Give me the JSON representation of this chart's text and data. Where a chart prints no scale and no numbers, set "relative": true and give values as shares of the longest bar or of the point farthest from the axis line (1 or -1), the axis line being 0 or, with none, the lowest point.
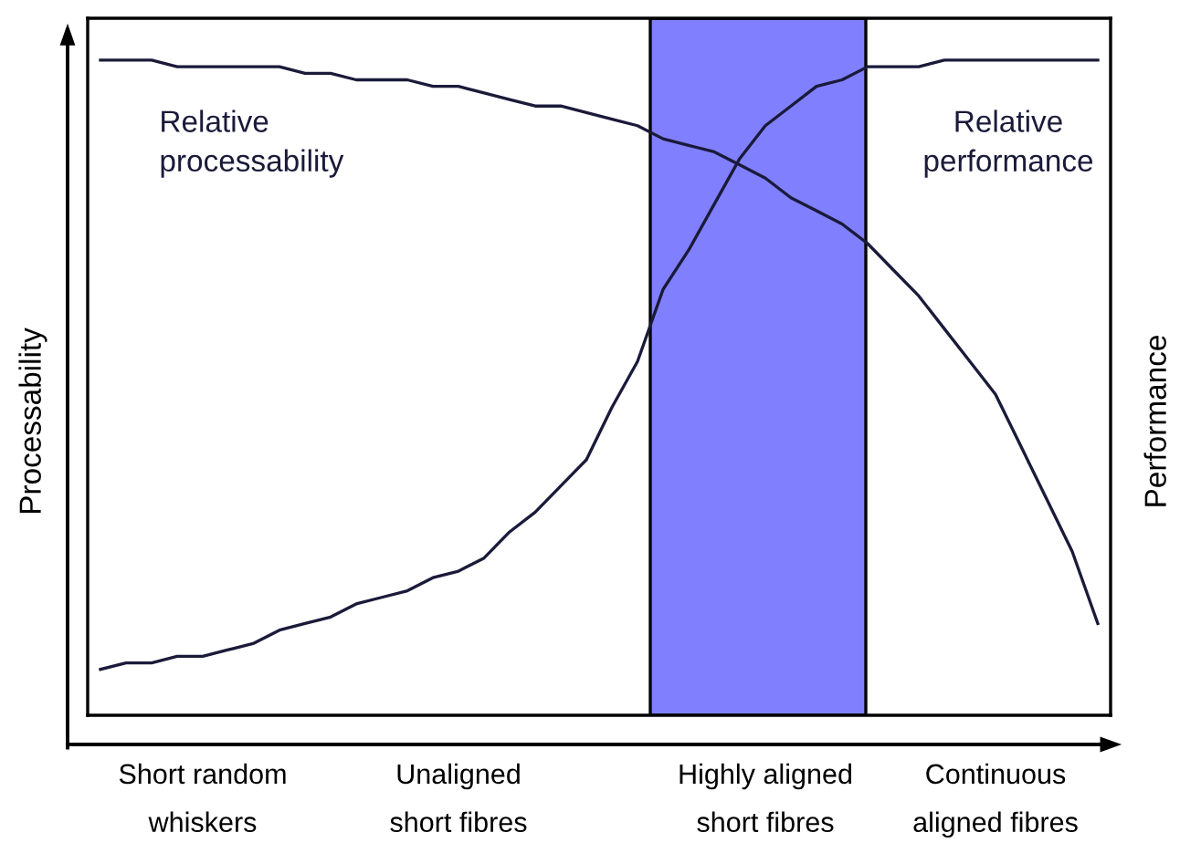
{
  "chart_data": {
    "type": "line",
    "relative": true,
    "ylabel": "Processability",
    "y2label": "Performance",
    "tick_labels": "x",
    "categories": [
      null,
      null,
      null,
      null,
      "Short random\nwhiskers",
      null,
      null,
      null,
      null,
      null,
      null,
      null,
      null,
      null,
      "Unaligned\nshort fibres",
      null,
      null,
      null,
      null,
      null,
      null,
      null,
      null,
      null,
      null,
      null,
      "Highly aligned\nshort fibres",
      null,
      null,
      null,
      null,
      null,
      null,
      null,
      null,
      "Continuous\naligned fibres",
      null,
      null,
      null,
      null
    ],
    "series": [
      {
        "name": "Relative\nprocessability",
        "color": "#1a1a3a",
        "values": [
          1.0,
          1.0,
          1.0,
          0.99,
          0.99,
          0.99,
          0.99,
          0.99,
          0.98,
          0.98,
          0.97,
          0.97,
          0.97,
          0.96,
          0.96,
          0.95,
          0.94,
          0.93,
          0.93,
          0.92,
          0.91,
          0.9,
          0.88,
          0.87,
          0.86,
          0.84,
          0.82,
          0.79,
          0.77,
          0.75,
          0.72,
          0.68,
          0.64,
          0.59,
          0.54,
          0.49,
          0.41,
          0.33,
          0.25,
          0.14
        ]
      },
      {
        "name": "Relative\nperformance",
        "color": "#1a1a3a",
        "axis": "y2",
        "values": [
          0.07,
          0.08,
          0.08,
          0.09,
          0.09,
          0.1,
          0.11,
          0.13,
          0.14,
          0.15,
          0.17,
          0.18,
          0.19,
          0.21,
          0.22,
          0.24,
          0.28,
          0.31,
          0.35,
          0.39,
          0.47,
          0.54,
          0.65,
          0.71,
          0.78,
          0.85,
          0.9,
          0.93,
          0.96,
          0.97,
          0.99,
          0.99,
          0.99,
          1.0,
          1.0,
          1.0,
          1.0,
          1.0,
          1.0,
          1.0
        ]
      }
    ],
    "marker": "none",
    "line_style": "solid",
    "grid": false
  }
}
